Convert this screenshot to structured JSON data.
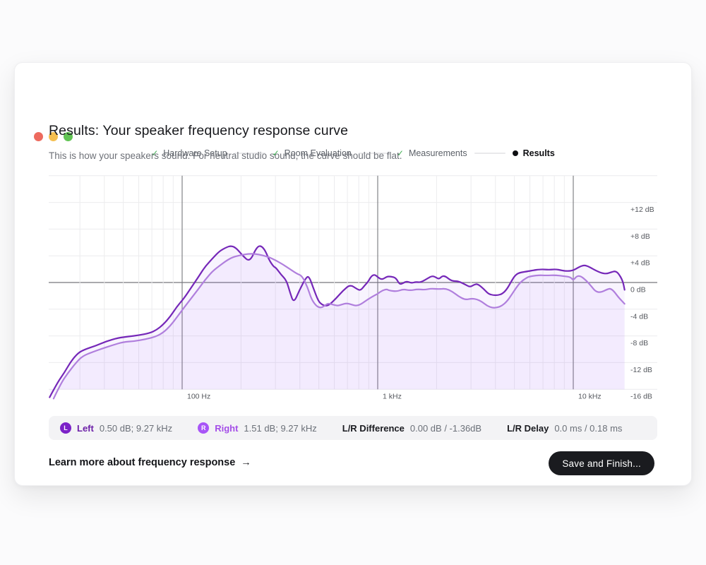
{
  "window": {
    "traffic_lights": [
      {
        "name": "close",
        "color": "#ed6a5e"
      },
      {
        "name": "minimize",
        "color": "#f5bf4f"
      },
      {
        "name": "zoom",
        "color": "#61c454"
      }
    ]
  },
  "icons": {
    "check": "✓",
    "arrow_right": "→"
  },
  "stepper": {
    "check_color": "#3fae52",
    "steps": [
      {
        "label": "Hardware Setup",
        "state": "done"
      },
      {
        "label": "Room Evaluation",
        "state": "done"
      },
      {
        "label": "Measurements",
        "state": "done"
      },
      {
        "label": "Results",
        "state": "current"
      }
    ]
  },
  "header": {
    "title": "Results: Your speaker frequency response curve",
    "subtitle": "This is how your speakers sound. For neutral studio sound, the curve should be flat."
  },
  "chart_data": {
    "type": "line",
    "x_axis": {
      "scale": "log",
      "unit": "Hz",
      "range_hz": [
        21,
        18500
      ],
      "major_ticks": [
        {
          "f": 100,
          "label": "100 Hz"
        },
        {
          "f": 1000,
          "label": "1 kHz"
        },
        {
          "f": 10000,
          "label": "10 kHz"
        }
      ],
      "minor_gridlines_hz": [
        30,
        40,
        50,
        60,
        70,
        80,
        90,
        200,
        300,
        400,
        500,
        600,
        700,
        800,
        900,
        2000,
        3000,
        4000,
        5000,
        6000,
        7000,
        8000,
        9000
      ]
    },
    "y_axis": {
      "unit": "dB",
      "range_db": [
        -16,
        16
      ],
      "gridline_values": [
        16,
        12,
        8,
        4,
        0,
        -4,
        -8,
        -12,
        -16
      ],
      "ticks": [
        {
          "v": 12,
          "label": "+12 dB"
        },
        {
          "v": 8,
          "label": "+8 dB"
        },
        {
          "v": 4,
          "label": "+4 dB"
        },
        {
          "v": 0,
          "label": "0 dB"
        },
        {
          "v": -4,
          "label": "-4 dB"
        },
        {
          "v": -8,
          "label": "-8 dB"
        },
        {
          "v": -12,
          "label": "-12 dB"
        },
        {
          "v": -16,
          "label": "-16 dB"
        }
      ],
      "zero_line": 0
    },
    "grid": {
      "light": "#ececee",
      "dark": "#77787c"
    },
    "series": [
      {
        "name": "Left",
        "color": "#7527b8",
        "fill": "rgba(124,58,237,0.055)",
        "points": [
          [
            21,
            -17.2
          ],
          [
            23,
            -15.0
          ],
          [
            25,
            -13.5
          ],
          [
            27,
            -11.8
          ],
          [
            29.5,
            -10.5
          ],
          [
            32,
            -10.0
          ],
          [
            36,
            -9.5
          ],
          [
            41,
            -8.8
          ],
          [
            47,
            -8.3
          ],
          [
            53,
            -8.1
          ],
          [
            60,
            -7.9
          ],
          [
            68,
            -7.6
          ],
          [
            74,
            -7.1
          ],
          [
            80,
            -6.3
          ],
          [
            87,
            -5.1
          ],
          [
            94,
            -3.6
          ],
          [
            102,
            -2.4
          ],
          [
            111,
            -0.8
          ],
          [
            121,
            0.8
          ],
          [
            131,
            2.4
          ],
          [
            143,
            3.6
          ],
          [
            155,
            4.7
          ],
          [
            169,
            5.3
          ],
          [
            178,
            5.5
          ],
          [
            188,
            5.2
          ],
          [
            199,
            4.4
          ],
          [
            208,
            3.8
          ],
          [
            217,
            3.3
          ],
          [
            226,
            3.6
          ],
          [
            236,
            4.8
          ],
          [
            246,
            5.5
          ],
          [
            256,
            5.4
          ],
          [
            267,
            4.7
          ],
          [
            278,
            3.4
          ],
          [
            293,
            2.4
          ],
          [
            302,
            2.2
          ],
          [
            320,
            1.2
          ],
          [
            342,
            0.3
          ],
          [
            356,
            -1.5
          ],
          [
            372,
            -3.1
          ],
          [
            397,
            -1.2
          ],
          [
            431,
            0.8
          ],
          [
            446,
            0.9
          ],
          [
            468,
            -0.8
          ],
          [
            497,
            -2.8
          ],
          [
            518,
            -3.3
          ],
          [
            540,
            -3.5
          ],
          [
            563,
            -3.4
          ],
          [
            612,
            -2.4
          ],
          [
            665,
            -1.2
          ],
          [
            723,
            -0.3
          ],
          [
            785,
            -1.0
          ],
          [
            818,
            -1.2
          ],
          [
            860,
            -0.4
          ],
          [
            892,
            0.1
          ],
          [
            929,
            1.0
          ],
          [
            967,
            1.2
          ],
          [
            1000,
            0.8
          ],
          [
            1052,
            0.4
          ],
          [
            1113,
            0.9
          ],
          [
            1170,
            0.9
          ],
          [
            1240,
            0.7
          ],
          [
            1293,
            -0.3
          ],
          [
            1349,
            -0.1
          ],
          [
            1407,
            0.2
          ],
          [
            1490,
            -0.1
          ],
          [
            1565,
            0.1
          ],
          [
            1655,
            0.0
          ],
          [
            1795,
            0.6
          ],
          [
            1900,
            1.0
          ],
          [
            1977,
            0.8
          ],
          [
            2060,
            0.5
          ],
          [
            2141,
            1.0
          ],
          [
            2230,
            0.9
          ],
          [
            2342,
            0.4
          ],
          [
            2440,
            0.2
          ],
          [
            2583,
            0.2
          ],
          [
            2802,
            -0.3
          ],
          [
            2967,
            -0.7
          ],
          [
            3116,
            -0.3
          ],
          [
            3247,
            -0.2
          ],
          [
            3495,
            -1.0
          ],
          [
            3677,
            -1.7
          ],
          [
            3890,
            -1.9
          ],
          [
            4123,
            -1.9
          ],
          [
            4333,
            -1.7
          ],
          [
            4582,
            -1.0
          ],
          [
            4846,
            0.3
          ],
          [
            5083,
            1.2
          ],
          [
            5355,
            1.5
          ],
          [
            5930,
            1.7
          ],
          [
            6130,
            1.8
          ],
          [
            6900,
            2.0
          ],
          [
            7500,
            1.9
          ],
          [
            8100,
            2.0
          ],
          [
            8800,
            1.8
          ],
          [
            9300,
            1.7
          ],
          [
            10000,
            1.8
          ],
          [
            10800,
            2.4
          ],
          [
            11400,
            2.6
          ],
          [
            12000,
            2.4
          ],
          [
            13000,
            1.8
          ],
          [
            14000,
            1.4
          ],
          [
            14800,
            1.3
          ],
          [
            15800,
            1.6
          ],
          [
            16400,
            1.7
          ],
          [
            17000,
            1.4
          ],
          [
            17900,
            0.3
          ],
          [
            18300,
            -1.1
          ]
        ]
      },
      {
        "name": "Right",
        "color": "#b07fdd",
        "fill": "rgba(168,85,247,0.055)",
        "points": [
          [
            22,
            -17.4
          ],
          [
            24,
            -15.1
          ],
          [
            26,
            -13.6
          ],
          [
            28.5,
            -12.1
          ],
          [
            31,
            -11.0
          ],
          [
            35,
            -10.4
          ],
          [
            39,
            -9.9
          ],
          [
            44,
            -9.4
          ],
          [
            50,
            -8.9
          ],
          [
            57,
            -8.8
          ],
          [
            65,
            -8.5
          ],
          [
            73.5,
            -8.1
          ],
          [
            80,
            -7.5
          ],
          [
            87,
            -6.5
          ],
          [
            94,
            -5.2
          ],
          [
            102,
            -3.8
          ],
          [
            111,
            -2.4
          ],
          [
            121,
            -1.0
          ],
          [
            131,
            0.4
          ],
          [
            143,
            1.7
          ],
          [
            155,
            2.5
          ],
          [
            169,
            3.3
          ],
          [
            181,
            3.8
          ],
          [
            199,
            4.1
          ],
          [
            217,
            4.3
          ],
          [
            236,
            4.3
          ],
          [
            256,
            4.1
          ],
          [
            278,
            3.8
          ],
          [
            302,
            3.3
          ],
          [
            328,
            2.7
          ],
          [
            356,
            2.0
          ],
          [
            387,
            1.3
          ],
          [
            411,
            1.0
          ],
          [
            439,
            -0.8
          ],
          [
            458,
            -2.5
          ],
          [
            484,
            -3.5
          ],
          [
            508,
            -3.8
          ],
          [
            530,
            -3.6
          ],
          [
            555,
            -3.1
          ],
          [
            588,
            -3.3
          ],
          [
            624,
            -3.5
          ],
          [
            655,
            -3.3
          ],
          [
            693,
            -3.1
          ],
          [
            735,
            -3.3
          ],
          [
            772,
            -3.5
          ],
          [
            818,
            -3.3
          ],
          [
            892,
            -2.5
          ],
          [
            967,
            -1.9
          ],
          [
            1000,
            -1.7
          ],
          [
            1052,
            -1.2
          ],
          [
            1113,
            -1.0
          ],
          [
            1143,
            -1.2
          ],
          [
            1250,
            -1.35
          ],
          [
            1350,
            -1.0
          ],
          [
            1466,
            -1.2
          ],
          [
            1595,
            -1.0
          ],
          [
            1735,
            -1.1
          ],
          [
            1877,
            -0.9
          ],
          [
            2053,
            -1.0
          ],
          [
            2222,
            -0.9
          ],
          [
            2410,
            -1.35
          ],
          [
            2583,
            -2.05
          ],
          [
            2802,
            -2.6
          ],
          [
            3030,
            -2.4
          ],
          [
            3210,
            -2.5
          ],
          [
            3420,
            -2.9
          ],
          [
            3630,
            -3.5
          ],
          [
            3860,
            -3.8
          ],
          [
            4080,
            -3.75
          ],
          [
            4310,
            -3.5
          ],
          [
            4560,
            -2.9
          ],
          [
            4820,
            -1.9
          ],
          [
            5100,
            -0.8
          ],
          [
            5390,
            0.1
          ],
          [
            5700,
            0.6
          ],
          [
            5930,
            0.9
          ],
          [
            6600,
            1.1
          ],
          [
            7300,
            1.05
          ],
          [
            8100,
            1.1
          ],
          [
            9000,
            0.95
          ],
          [
            9700,
            0.8
          ],
          [
            10000,
            0.3
          ],
          [
            10400,
            0.95
          ],
          [
            10900,
            1.0
          ],
          [
            11700,
            0.25
          ],
          [
            12400,
            -0.6
          ],
          [
            13000,
            -1.35
          ],
          [
            13800,
            -1.5
          ],
          [
            15000,
            -1.0
          ],
          [
            15500,
            -0.9
          ],
          [
            16200,
            -1.35
          ],
          [
            17000,
            -2.2
          ],
          [
            18300,
            -3.2
          ]
        ]
      }
    ]
  },
  "legend": {
    "items": [
      {
        "badge": "L",
        "badge_color": "#7c22c8",
        "label": "Left",
        "value": "0.50 dB; 9.27 kHz"
      },
      {
        "badge": "R",
        "badge_color": "#a855f7",
        "label": "Right",
        "value": "1.51 dB; 9.27 kHz"
      },
      {
        "label": "L/R Difference",
        "value": "0.00 dB / -1.36dB"
      },
      {
        "label": "L/R Delay",
        "value": "0.0 ms / 0.18 ms"
      }
    ]
  },
  "footer": {
    "link_text": "Learn more about frequency response",
    "link_arrow": "→",
    "button_label": "Save and Finish..."
  }
}
